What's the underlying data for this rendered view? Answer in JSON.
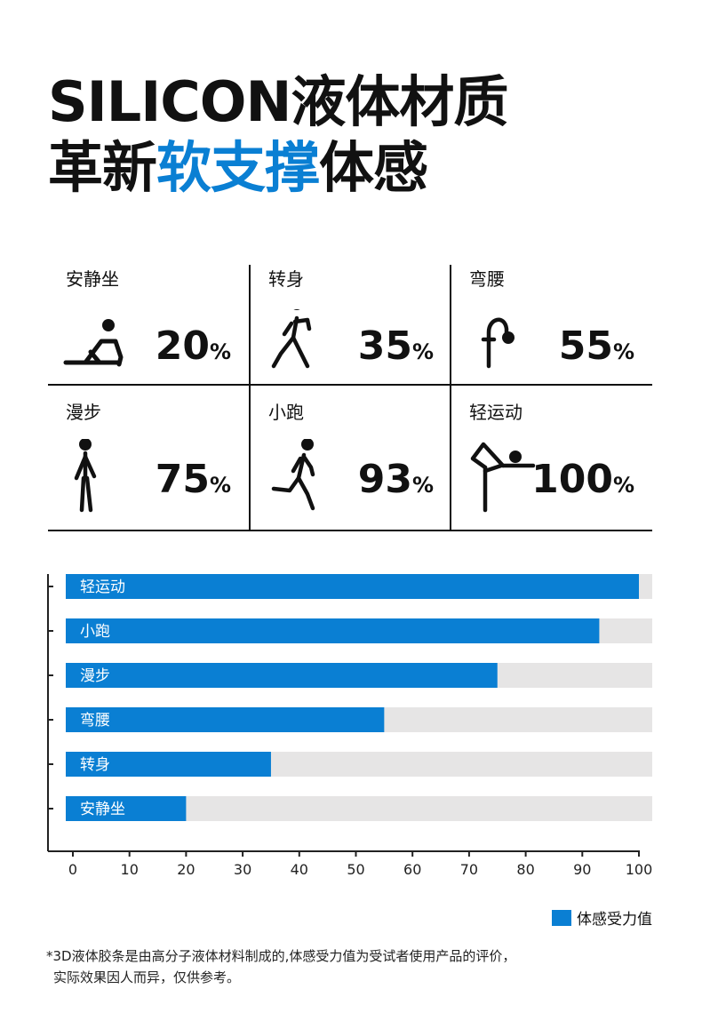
{
  "title": {
    "line1": "SILICON液体材质",
    "line2_pre": "革新",
    "line2_accent": "软支撑",
    "line2_post": "体感"
  },
  "cards": [
    {
      "label": "安静坐",
      "value": "20",
      "unit": "%",
      "icon": "sitting-person-icon"
    },
    {
      "label": "转身",
      "value": "35",
      "unit": "%",
      "icon": "turning-person-icon"
    },
    {
      "label": "弯腰",
      "value": "55",
      "unit": "%",
      "icon": "bending-person-icon"
    },
    {
      "label": "漫步",
      "value": "75",
      "unit": "%",
      "icon": "walking-person-icon"
    },
    {
      "label": "小跑",
      "value": "93",
      "unit": "%",
      "icon": "running-person-icon"
    },
    {
      "label": "轻运动",
      "value": "100",
      "unit": "%",
      "icon": "light-exercise-person-icon"
    }
  ],
  "chart_data": {
    "type": "bar",
    "orientation": "horizontal",
    "stacked_background": true,
    "categories": [
      "轻运动",
      "小跑",
      "漫步",
      "弯腰",
      "转身",
      "安静坐"
    ],
    "series": [
      {
        "name": "体感受力值",
        "values": [
          100,
          93,
          75,
          55,
          35,
          20
        ]
      }
    ],
    "xlim": [
      0,
      100
    ],
    "xticks": [
      0,
      10,
      20,
      30,
      40,
      50,
      60,
      70,
      80,
      90,
      100
    ],
    "colors": {
      "bar": "#0a7fd3",
      "track": "#e6e5e5",
      "axis": "#222222"
    },
    "legend": "bottom-right",
    "grid": false
  },
  "legend": {
    "label": "体感受力值"
  },
  "footnote": {
    "line1": "*3D液体胶条是由高分子液体材料制成的,体感受力值为受试者使用产品的评价，",
    "line2": "实际效果因人而异，仅供参考。"
  }
}
